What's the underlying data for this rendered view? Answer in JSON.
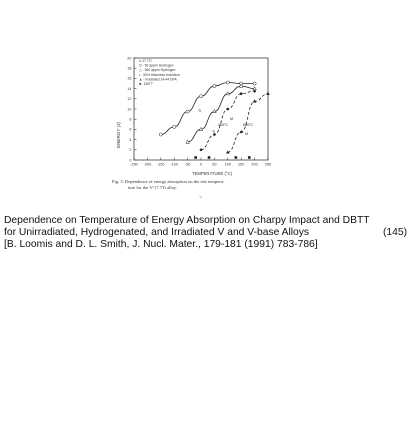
{
  "figure": {
    "legend": [
      {
        "marker": "circle",
        "text": "V-17.7Ti"
      },
      {
        "marker": "open-circle",
        "text": "O - 50  appm Hydrogen"
      },
      {
        "marker": "open-triangle",
        "text": "△ - 560  appm Hydrogen"
      },
      {
        "marker": "dot",
        "text": "• - 50% thickness reduction"
      },
      {
        "marker": "triangle",
        "text": "▲ - irradiated 14-44 DPA"
      },
      {
        "marker": "square",
        "text": "■ - DBTT"
      }
    ],
    "ylabel": "ENERGY (J)",
    "xlabel": "TEMPERATURE (°C)",
    "annotations": [
      "Ti",
      "400°C",
      "Ti",
      "M",
      "600°C",
      "M"
    ],
    "caption_line1": "Fig. 3.  Dependence of energy absorption on the test tempera-",
    "caption_line2": "ture for the V-17.7Ti alloy.",
    "tiny_mark": "~"
  },
  "chart_data": {
    "type": "line",
    "xlabel": "TEMPERATURE (°C)",
    "ylabel": "ENERGY (J)",
    "xlim": [
      -250,
      250
    ],
    "ylim": [
      0,
      20
    ],
    "x_ticks": [
      -250,
      -200,
      -150,
      -100,
      -50,
      0,
      50,
      100,
      150,
      200,
      250
    ],
    "y_ticks": [
      0,
      2,
      4,
      6,
      8,
      10,
      12,
      14,
      16,
      18,
      20
    ],
    "series": [
      {
        "marker": "circle-open",
        "style": "solid",
        "x": [
          -150,
          -100,
          -50,
          0,
          50,
          100,
          150,
          200
        ],
        "y": [
          5.0,
          6.5,
          9.5,
          12.5,
          14.5,
          15.2,
          15.0,
          15.0
        ]
      },
      {
        "marker": "triangle-open",
        "style": "solid",
        "x": [
          -50,
          0,
          50,
          100,
          150,
          200
        ],
        "y": [
          3.5,
          6.0,
          9.5,
          13.0,
          14.5,
          14.0
        ]
      },
      {
        "marker": "dot",
        "style": "dashed",
        "x": [
          0,
          50,
          100,
          150,
          200
        ],
        "y": [
          2.0,
          5.0,
          10.0,
          13.0,
          13.5
        ]
      },
      {
        "marker": "triangle-filled",
        "style": "dashed",
        "x": [
          100,
          150,
          200,
          250
        ],
        "y": [
          1.5,
          5.5,
          11.5,
          13.0
        ]
      }
    ],
    "dbtt_markers": [
      -20,
      30,
      130,
      180
    ]
  },
  "title": {
    "line1": "Dependence on Temperature of Energy Absorption on Charpy Impact and DBTT",
    "line2": "for Unirradiated, Hydrogenated, and Irradiated V and V-base Alloys",
    "page_number": "(145)",
    "line3": "[B. Loomis and D. L. Smith, J. Nucl. Mater., 179-181 (1991) 783-786]"
  }
}
